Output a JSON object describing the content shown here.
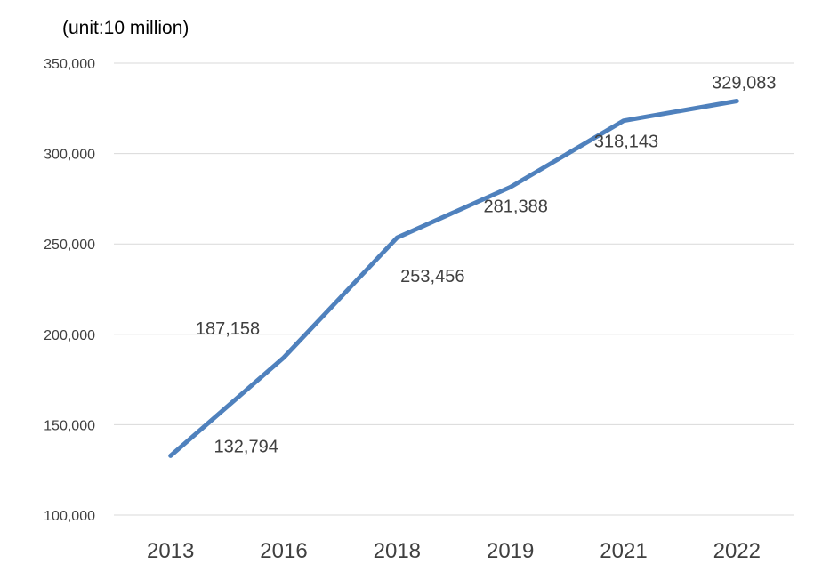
{
  "chart_data": {
    "type": "line",
    "unit_label": "(unit:10 million)",
    "categories": [
      "2013",
      "2016",
      "2018",
      "2019",
      "2021",
      "2022"
    ],
    "series": [
      {
        "values": [
          132794,
          187158,
          253456,
          281388,
          318143,
          329083
        ],
        "color": "#4f81bd"
      }
    ],
    "data_labels": [
      "132,794",
      "187,158",
      "253,456",
      "281,388",
      "318,143",
      "329,083"
    ],
    "y_ticks": [
      "100,000",
      "150,000",
      "200,000",
      "250,000",
      "300,000",
      "350,000"
    ],
    "ylim": [
      100000,
      350000
    ],
    "grid": true
  }
}
